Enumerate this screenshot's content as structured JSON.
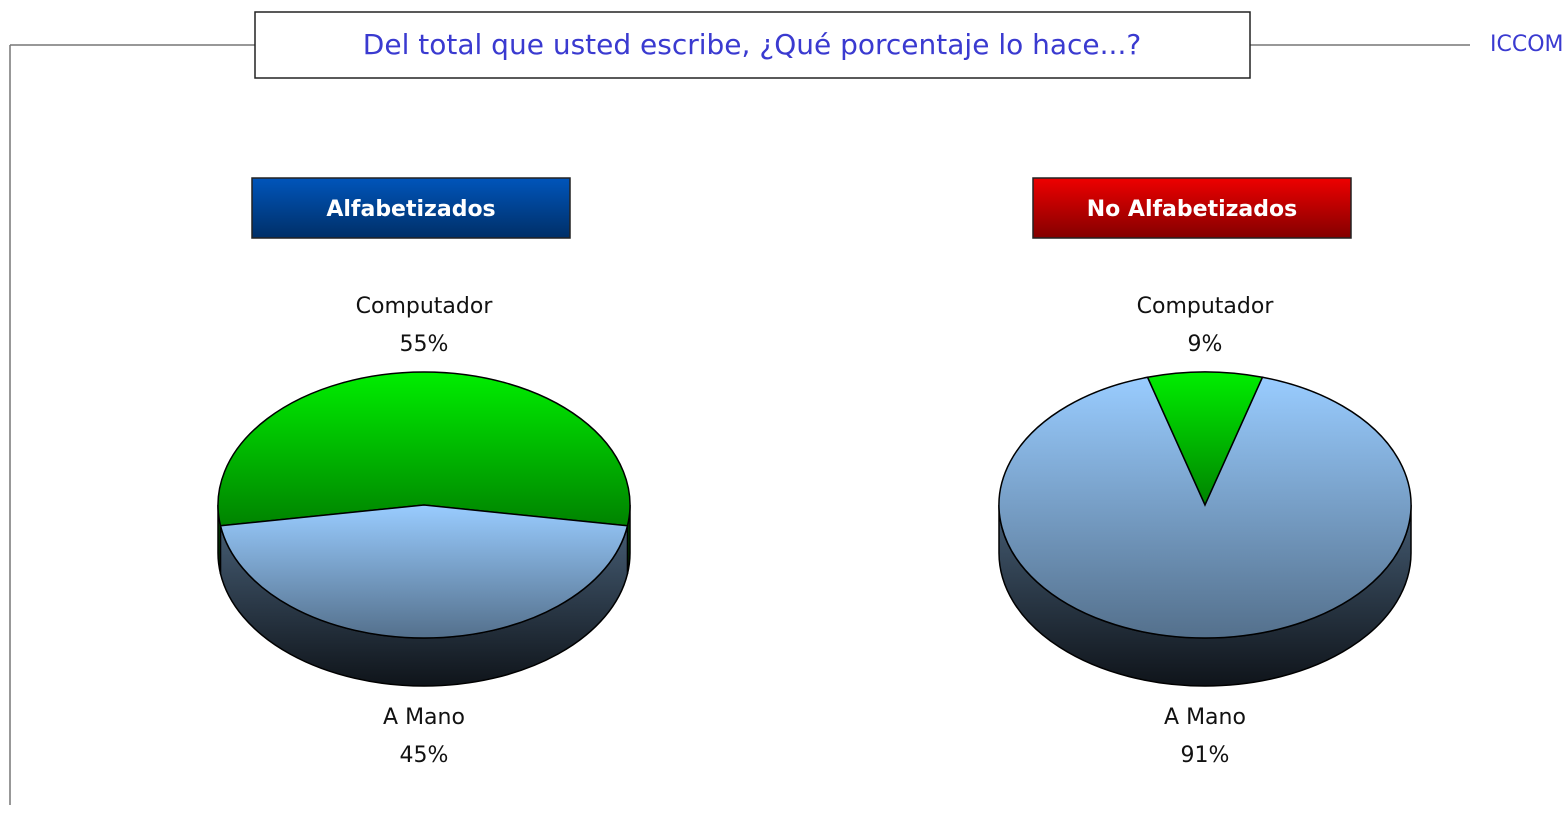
{
  "title": "Del total que usted escribe, ¿Qué porcentaje lo hace...?",
  "brand": "ICCOM",
  "chart_data": [
    {
      "type": "pie",
      "title": "Alfabetizados",
      "title_color": "#0055bb",
      "categories": [
        "Computador",
        "A Mano"
      ],
      "values": [
        55,
        45
      ],
      "value_labels": [
        "55%",
        "45%"
      ],
      "colors": [
        "#00ee00",
        "#99ccff"
      ]
    },
    {
      "type": "pie",
      "title": "No Alfabetizados",
      "title_color": "#ee0000",
      "categories": [
        "Computador",
        "A Mano"
      ],
      "values": [
        9,
        91
      ],
      "value_labels": [
        "9%",
        "91%"
      ],
      "colors": [
        "#00ee00",
        "#99ccff"
      ]
    }
  ]
}
